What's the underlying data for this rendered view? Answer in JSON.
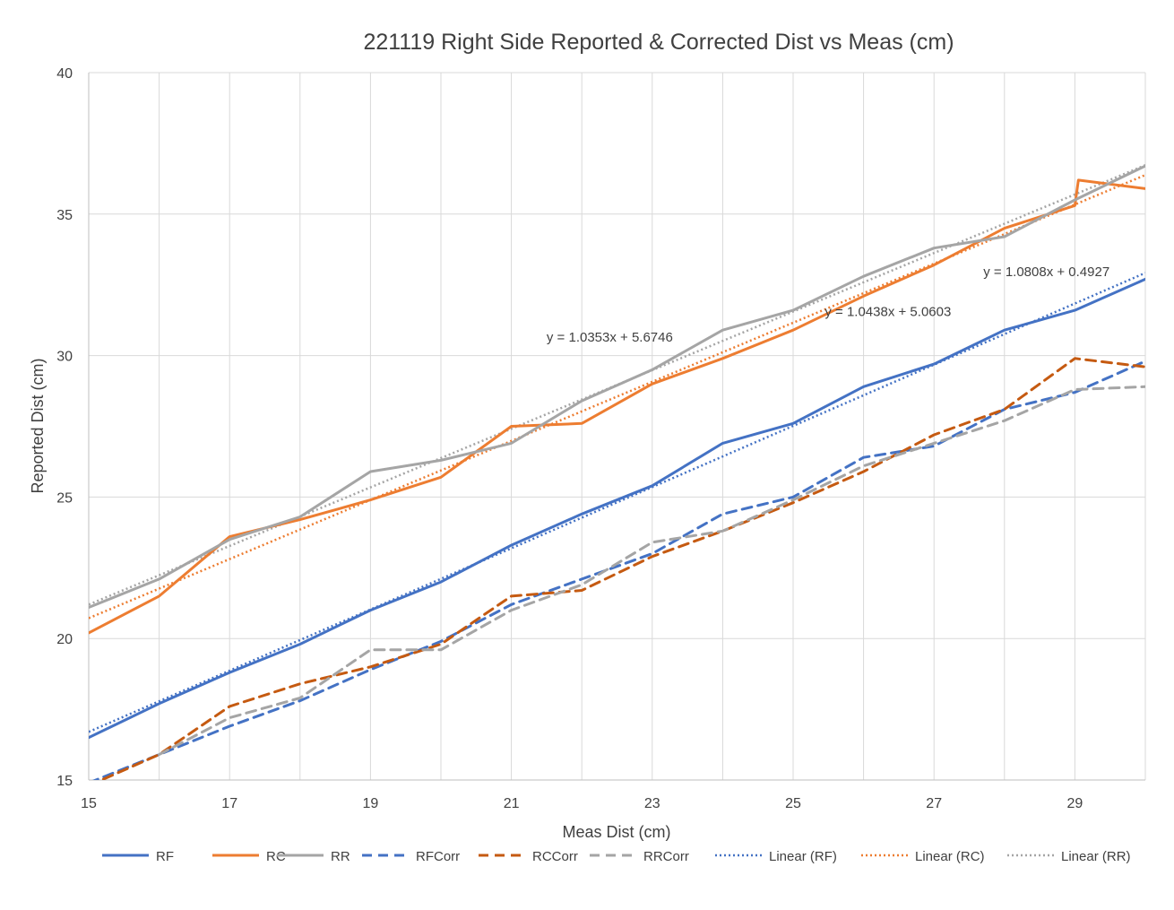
{
  "chart_data": {
    "type": "line",
    "title": "221119 Right Side Reported & Corrected Dist vs Meas (cm)",
    "xlabel": "Meas Dist (cm)",
    "ylabel": "Reported Dist (cm)",
    "xlim": [
      15,
      30
    ],
    "ylim": [
      15,
      40
    ],
    "x_ticks": [
      15,
      17,
      19,
      21,
      23,
      25,
      27,
      29
    ],
    "y_ticks": [
      15,
      20,
      25,
      30,
      35,
      40
    ],
    "grid": true,
    "legend_position": "bottom",
    "series": [
      {
        "name": "RF",
        "color": "#4472C4",
        "style": "solid",
        "x": [
          15,
          16,
          17,
          18,
          19,
          20,
          21,
          22,
          23,
          24,
          25,
          26,
          27,
          28,
          29,
          30
        ],
        "y": [
          16.5,
          17.7,
          18.8,
          19.8,
          21.0,
          22.0,
          23.3,
          24.4,
          25.4,
          26.9,
          27.6,
          28.9,
          29.7,
          30.9,
          31.6,
          32.7
        ]
      },
      {
        "name": "RC",
        "color": "#ED7D31",
        "style": "solid",
        "x": [
          15,
          16,
          17,
          18,
          19,
          20,
          21,
          22,
          23,
          24,
          25,
          26,
          27,
          28,
          29,
          29.05,
          30
        ],
        "y": [
          20.2,
          21.5,
          23.6,
          24.2,
          24.9,
          25.7,
          27.5,
          27.6,
          29.0,
          29.9,
          30.9,
          32.1,
          33.2,
          34.5,
          35.3,
          36.2,
          35.9
        ]
      },
      {
        "name": "RR",
        "color": "#A5A5A5",
        "style": "solid",
        "x": [
          15,
          16,
          17,
          18,
          19,
          20,
          21,
          22,
          23,
          24,
          25,
          26,
          27,
          28,
          29,
          30
        ],
        "y": [
          21.1,
          22.1,
          23.5,
          24.3,
          25.9,
          26.3,
          26.9,
          28.4,
          29.5,
          30.9,
          31.6,
          32.8,
          33.8,
          34.2,
          35.5,
          36.7
        ]
      },
      {
        "name": "RFCorr",
        "color": "#4472C4",
        "style": "dash",
        "x": [
          15,
          16,
          17,
          18,
          19,
          20,
          21,
          22,
          23,
          24,
          25,
          26,
          27,
          28,
          29,
          30
        ],
        "y": [
          14.9,
          15.9,
          16.9,
          17.8,
          18.9,
          19.9,
          21.2,
          22.1,
          23.0,
          24.4,
          25.0,
          26.4,
          26.8,
          28.1,
          28.7,
          29.8
        ]
      },
      {
        "name": "RCCorr",
        "color": "#C55A11",
        "style": "dash",
        "x": [
          15,
          16,
          17,
          18,
          19,
          20,
          21,
          22,
          23,
          24,
          25,
          26,
          27,
          28,
          29,
          30
        ],
        "y": [
          14.8,
          15.9,
          17.6,
          18.4,
          19.0,
          19.8,
          21.5,
          21.7,
          22.9,
          23.8,
          24.8,
          25.9,
          27.2,
          28.1,
          29.9,
          29.6
        ]
      },
      {
        "name": "RRCorr",
        "color": "#A5A5A5",
        "style": "dash",
        "x": [
          16,
          17,
          18,
          19,
          20,
          21,
          22,
          23,
          24,
          25,
          26,
          27,
          28,
          29,
          30
        ],
        "y": [
          15.9,
          17.2,
          17.9,
          19.6,
          19.6,
          21.0,
          21.9,
          23.4,
          23.8,
          24.9,
          26.1,
          26.9,
          27.7,
          28.8,
          28.9
        ]
      },
      {
        "name": "Linear (RF)",
        "color": "#4472C4",
        "style": "dot",
        "trend_of": "RF",
        "x": [
          15,
          30
        ],
        "y": [
          16.7,
          32.92
        ]
      },
      {
        "name": "Linear (RC)",
        "color": "#ED7D31",
        "style": "dot",
        "trend_of": "RC",
        "x": [
          15,
          30
        ],
        "y": [
          20.72,
          36.38
        ]
      },
      {
        "name": "Linear (RR)",
        "color": "#A5A5A5",
        "style": "dot",
        "trend_of": "RR",
        "x": [
          15,
          30
        ],
        "y": [
          21.2,
          36.73
        ]
      }
    ],
    "annotations": [
      {
        "text": "y = 1.0353x + 5.6746",
        "x": 21.5,
        "y": 30.5
      },
      {
        "text": "y = 1.0438x + 5.0603",
        "x": 25.45,
        "y": 31.4
      },
      {
        "text": "y = 1.0808x + 0.4927",
        "x": 27.7,
        "y": 32.8
      }
    ]
  }
}
